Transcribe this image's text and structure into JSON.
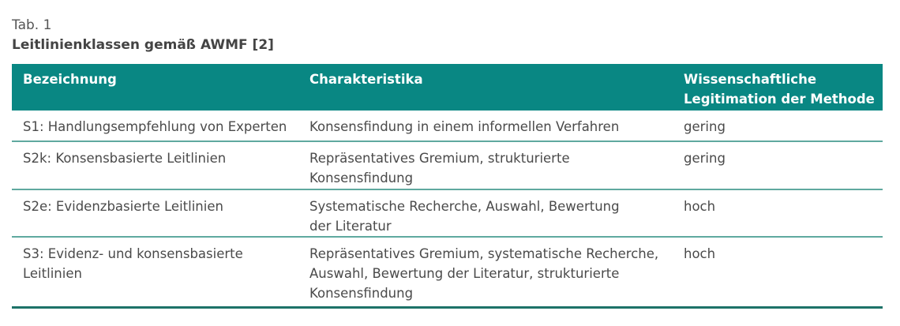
{
  "table_number": "Tab. 1",
  "caption": "Leitlinienklassen gemäß AWMF [2]",
  "colors": {
    "header_bg": "#098783",
    "row_divider": "#5fa99f",
    "bottom_rule": "#1d7268"
  },
  "columns": [
    "Bezeichnung",
    "Charakteristika",
    "Wissenschaftliche\nLegitimation der Methode"
  ],
  "rows": [
    [
      "S1: Handlungsempfehlung von Experten",
      "Konsensfindung in einem informellen Verfahren",
      "gering"
    ],
    [
      "S2k: Konsensbasierte Leitlinien",
      "Repräsentatives Gremium, strukturierte\nKonsensfindung",
      "gering"
    ],
    [
      "S2e: Evidenzbasierte Leitlinien",
      "Systematische Recherche, Auswahl, Bewertung\nder Literatur",
      "hoch"
    ],
    [
      "S3: Evidenz- und konsensbasierte\nLeitlinien",
      "Repräsentatives Gremium, systematische Recherche,\nAuswahl, Bewertung der Literatur, strukturierte\nKonsensfindung",
      "hoch"
    ]
  ]
}
